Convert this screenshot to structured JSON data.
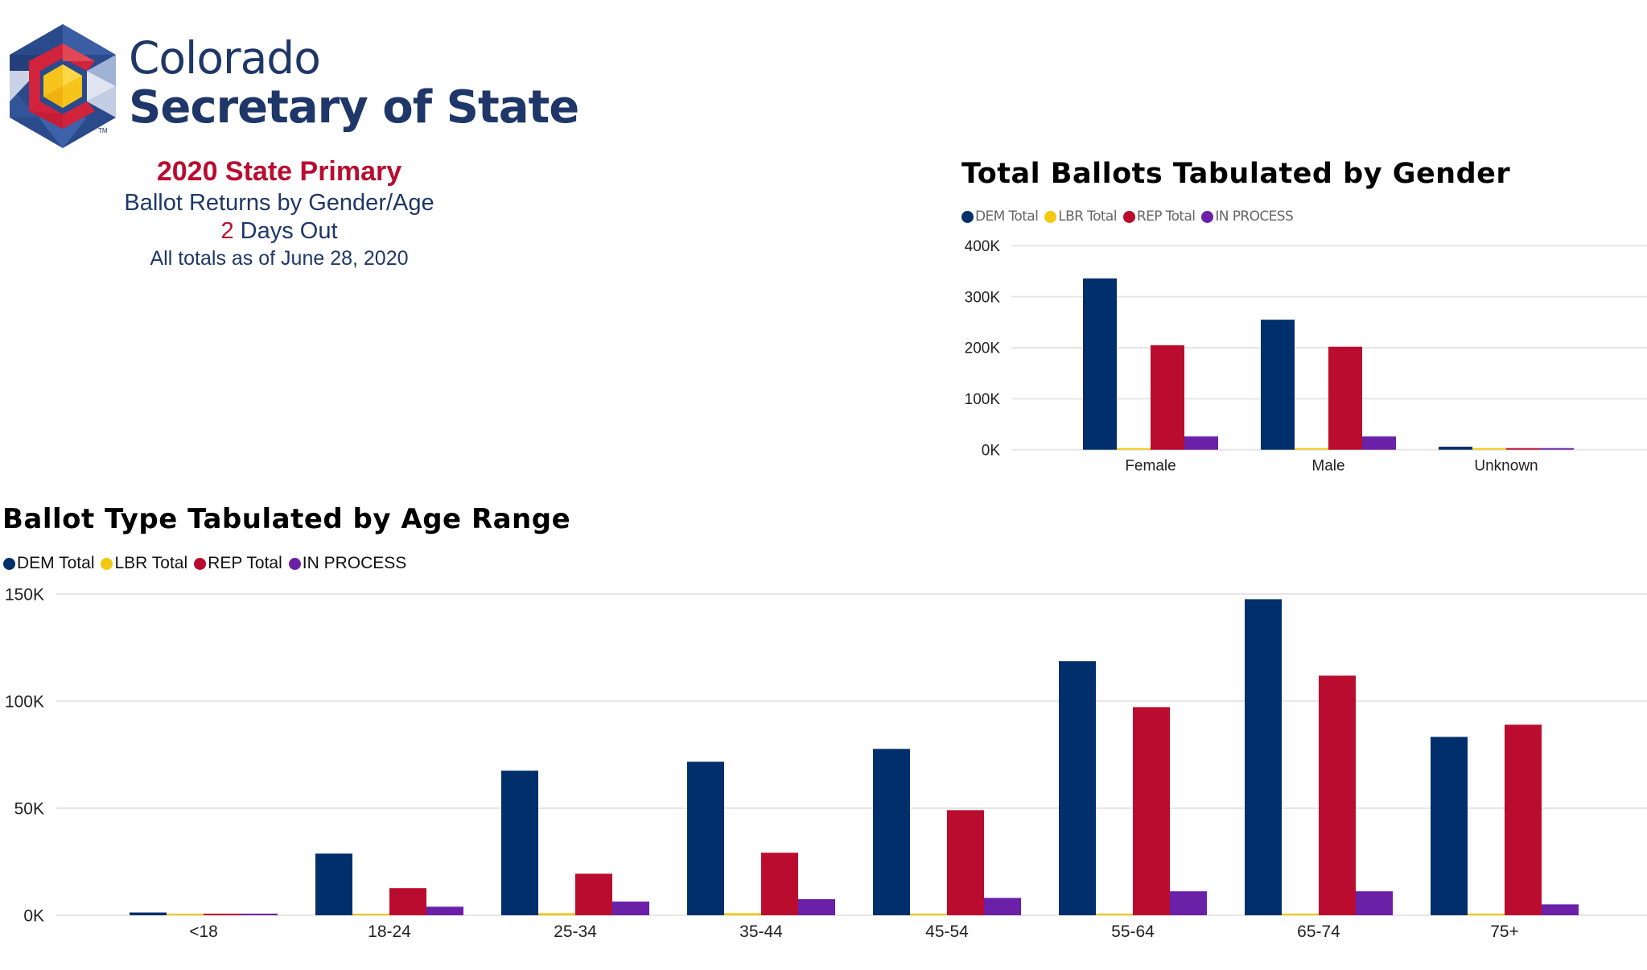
{
  "header": {
    "brand_line1": "Colorado",
    "brand_line2": "Secretary of State",
    "trademark": "TM",
    "title": "2020 State Primary",
    "subtitle": "Ballot Returns by Gender/Age",
    "days_number": "2",
    "days_label": " Days Out",
    "as_of": "All totals as of June 28, 2020"
  },
  "colors": {
    "dem": "#002f6c",
    "lbr": "#f2c811",
    "rep": "#ba0c2f",
    "in_process": "#6b20a8",
    "brand_blue": "#1f3768",
    "brand_red": "#ba0c2f"
  },
  "chart_data": [
    {
      "type": "bar",
      "title": "Total Ballots Tabulated by Gender",
      "xlabel": "",
      "ylabel": "",
      "categories": [
        "Female",
        "Male",
        "Unknown"
      ],
      "ylim": [
        0,
        400000
      ],
      "yticks": [
        0,
        100000,
        200000,
        300000,
        400000
      ],
      "ytick_labels": [
        "0K",
        "100K",
        "200K",
        "300K",
        "400K"
      ],
      "grid": true,
      "legend_position": "top-left",
      "series": [
        {
          "name": "DEM Total",
          "color": "#002f6c",
          "values": [
            336000,
            255000,
            6000
          ]
        },
        {
          "name": "LBR Total",
          "color": "#f2c811",
          "values": [
            2500,
            2500,
            2500
          ]
        },
        {
          "name": "REP Total",
          "color": "#ba0c2f",
          "values": [
            205000,
            202000,
            2000
          ]
        },
        {
          "name": "IN PROCESS",
          "color": "#6b20a8",
          "values": [
            26000,
            26000,
            2000
          ]
        }
      ]
    },
    {
      "type": "bar",
      "title": "Ballot Type Tabulated by Age Range",
      "xlabel": "",
      "ylabel": "",
      "categories": [
        "<18",
        "18-24",
        "25-34",
        "35-44",
        "45-54",
        "55-64",
        "65-74",
        "75+"
      ],
      "ylim": [
        0,
        150000
      ],
      "yticks": [
        0,
        50000,
        100000,
        150000
      ],
      "ytick_labels": [
        "0K",
        "50K",
        "100K",
        "150K"
      ],
      "grid": true,
      "legend_position": "top-left",
      "series": [
        {
          "name": "DEM Total",
          "color": "#002f6c",
          "values": [
            1300,
            28800,
            67500,
            71700,
            77700,
            118700,
            147600,
            83300
          ]
        },
        {
          "name": "LBR Total",
          "color": "#f2c811",
          "values": [
            500,
            500,
            1000,
            1000,
            800,
            800,
            800,
            800
          ]
        },
        {
          "name": "REP Total",
          "color": "#ba0c2f",
          "values": [
            500,
            12700,
            19400,
            29200,
            49100,
            97200,
            111900,
            89000
          ]
        },
        {
          "name": "IN PROCESS",
          "color": "#6b20a8",
          "values": [
            500,
            4000,
            6400,
            7500,
            8100,
            11200,
            11200,
            5100
          ]
        }
      ]
    }
  ]
}
